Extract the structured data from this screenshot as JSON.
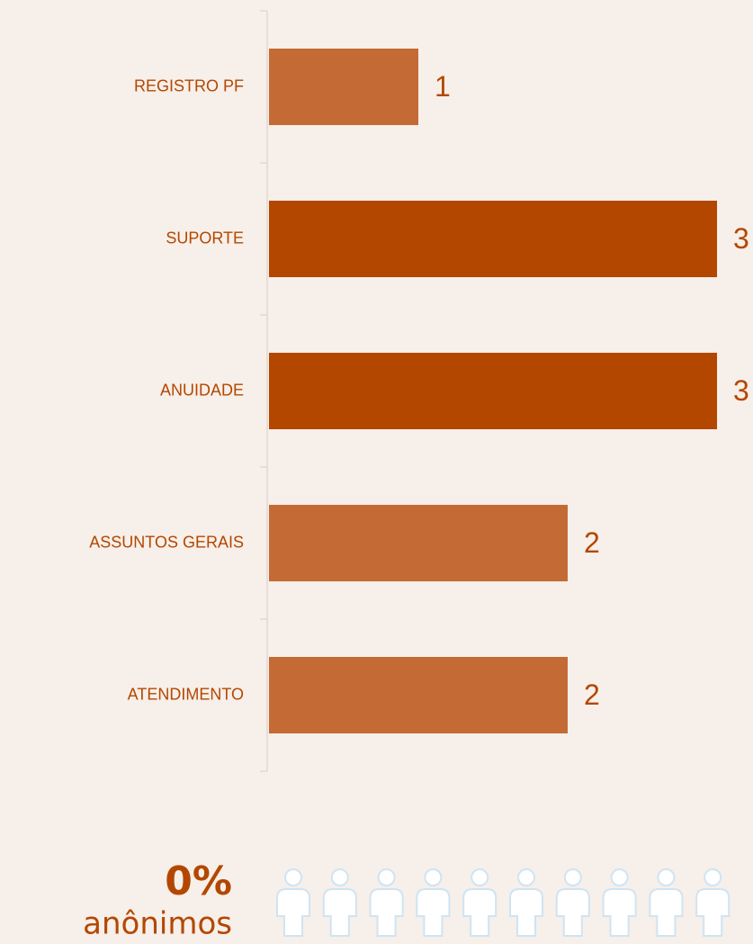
{
  "chart_data": {
    "type": "barh",
    "categories": [
      "REGISTRO PF",
      "SUPORTE",
      "ANUIDADE",
      "ASSUNTOS GERAIS",
      "ATENDIMENTO"
    ],
    "values": [
      1,
      3,
      3,
      2,
      2
    ],
    "colors": [
      "#c46a35",
      "#b34700",
      "#b34700",
      "#c46a35",
      "#c46a35"
    ],
    "xlim": [
      0,
      3
    ]
  },
  "summary": {
    "value": 0,
    "value_label": "0%",
    "label": "anônimos"
  }
}
